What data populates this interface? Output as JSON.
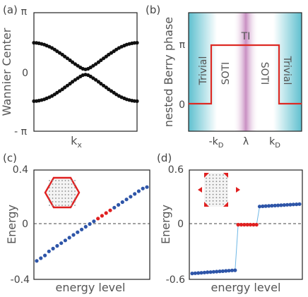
{
  "chart_data": [
    {
      "panel": "(a)",
      "type": "scatter",
      "xlabel": "k",
      "xlabel_sub": "x",
      "ylabel": "Wannier Center",
      "yticks": [
        "π",
        "0",
        "- π"
      ],
      "ylim": [
        -3.1416,
        3.1416
      ],
      "x": [
        -3.14,
        -2.98,
        -2.83,
        -2.67,
        -2.51,
        -2.36,
        -2.2,
        -2.04,
        -1.88,
        -1.73,
        -1.57,
        -1.41,
        -1.26,
        -1.1,
        -0.94,
        -0.79,
        -0.63,
        -0.47,
        -0.31,
        -0.16,
        0,
        0.16,
        0.31,
        0.47,
        0.63,
        0.79,
        0.94,
        1.1,
        1.26,
        1.41,
        1.57,
        1.73,
        1.88,
        2.04,
        2.2,
        2.36,
        2.51,
        2.67,
        2.83,
        2.98,
        3.14
      ],
      "series": [
        {
          "values": [
            1.55,
            1.54,
            1.52,
            1.49,
            1.45,
            1.4,
            1.34,
            1.27,
            1.19,
            1.1,
            1.01,
            0.92,
            0.82,
            0.72,
            0.62,
            0.52,
            0.42,
            0.33,
            0.24,
            0.17,
            0.14,
            0.17,
            0.24,
            0.33,
            0.42,
            0.52,
            0.62,
            0.72,
            0.82,
            0.92,
            1.01,
            1.1,
            1.19,
            1.27,
            1.34,
            1.4,
            1.45,
            1.49,
            1.52,
            1.54,
            1.55
          ]
        },
        {
          "values": [
            -1.55,
            -1.54,
            -1.52,
            -1.49,
            -1.45,
            -1.4,
            -1.34,
            -1.27,
            -1.19,
            -1.1,
            -1.01,
            -0.92,
            -0.82,
            -0.72,
            -0.62,
            -0.52,
            -0.42,
            -0.33,
            -0.24,
            -0.17,
            -0.14,
            -0.17,
            -0.24,
            -0.33,
            -0.42,
            -0.52,
            -0.62,
            -0.72,
            -0.82,
            -0.92,
            -1.01,
            -1.1,
            -1.19,
            -1.27,
            -1.34,
            -1.4,
            -1.45,
            -1.49,
            -1.52,
            -1.54,
            -1.55
          ]
        }
      ]
    },
    {
      "panel": "(b)",
      "type": "line",
      "ylabel": "nested Berry phase",
      "yticks": [
        "π",
        "0"
      ],
      "xticks": [
        "-k",
        "λ",
        "k"
      ],
      "xtick_sub": "D",
      "regions": [
        "Trivial",
        "SOTI",
        "TI",
        "SOTI",
        "Trivial"
      ],
      "x": [
        0,
        0.2,
        0.2,
        0.8,
        0.8,
        1
      ],
      "values": [
        0,
        0,
        1,
        1,
        0,
        0
      ],
      "colors": {
        "line": "#dd2a24",
        "trivial": "#5fc0cf",
        "ti": "#b45ba8"
      }
    },
    {
      "panel": "(c)",
      "type": "scatter",
      "xlabel": "energy level",
      "ylabel": "Energy",
      "yticks": [
        "0.4",
        "0",
        "-0.4"
      ],
      "ylim": [
        -0.4,
        0.4
      ],
      "values": [
        -0.265,
        -0.245,
        -0.225,
        -0.195,
        -0.175,
        -0.155,
        -0.135,
        -0.115,
        -0.095,
        -0.075,
        -0.055,
        -0.035,
        -0.015,
        0.005,
        0.025,
        0.045,
        0.065,
        0.085,
        0.105,
        0.125,
        0.145,
        0.165,
        0.185,
        0.205,
        0.225,
        0.245,
        0.265,
        0.275
      ],
      "red_points": [
        15,
        16,
        17,
        18
      ],
      "colors": {
        "blue": "#2e55a8",
        "red": "#e02020",
        "inset": "#e02020"
      }
    },
    {
      "panel": "(d)",
      "type": "scatter",
      "xlabel": "energy level",
      "ylabel": "Energy",
      "yticks": [
        "0.6",
        "0",
        "-0.6"
      ],
      "ylim": [
        -0.6,
        0.6
      ],
      "values": [
        -0.535,
        -0.533,
        -0.53,
        -0.528,
        -0.525,
        -0.522,
        -0.52,
        -0.517,
        -0.515,
        -0.512,
        -0.51,
        -0.507,
        -0.505,
        -0.502,
        -0.5,
        0,
        0,
        0,
        0,
        0,
        0,
        0,
        0.2,
        0.202,
        0.204,
        0.206,
        0.208,
        0.21,
        0.212,
        0.214,
        0.216,
        0.218,
        0.22,
        0.222,
        0.224,
        0.226
      ],
      "red_points": [
        15,
        16,
        17,
        18,
        19,
        20,
        21
      ],
      "colors": {
        "blue": "#2e55a8",
        "red": "#e02020",
        "connector": "#6fb8e6"
      }
    }
  ]
}
